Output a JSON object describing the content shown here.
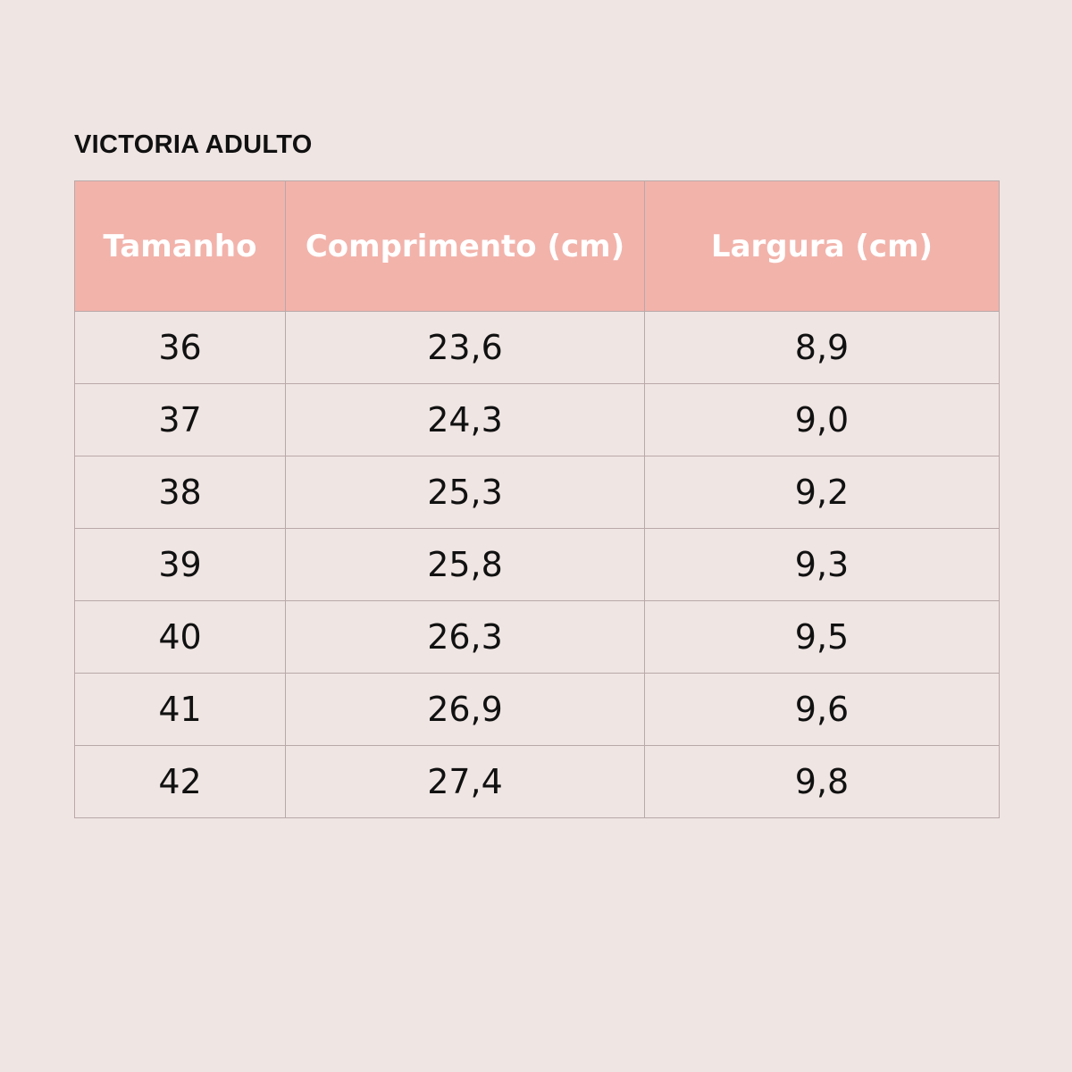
{
  "title": "VICTORIA ADULTO",
  "table": {
    "headers": [
      "Tamanho",
      "Comprimento (cm)",
      "Largura (cm)"
    ],
    "rows": [
      [
        "36",
        "23,6",
        "8,9"
      ],
      [
        "37",
        "24,3",
        "9,0"
      ],
      [
        "38",
        "25,3",
        "9,2"
      ],
      [
        "39",
        "25,8",
        "9,3"
      ],
      [
        "40",
        "26,3",
        "9,5"
      ],
      [
        "41",
        "26,9",
        "9,6"
      ],
      [
        "42",
        "27,4",
        "9,8"
      ]
    ]
  }
}
